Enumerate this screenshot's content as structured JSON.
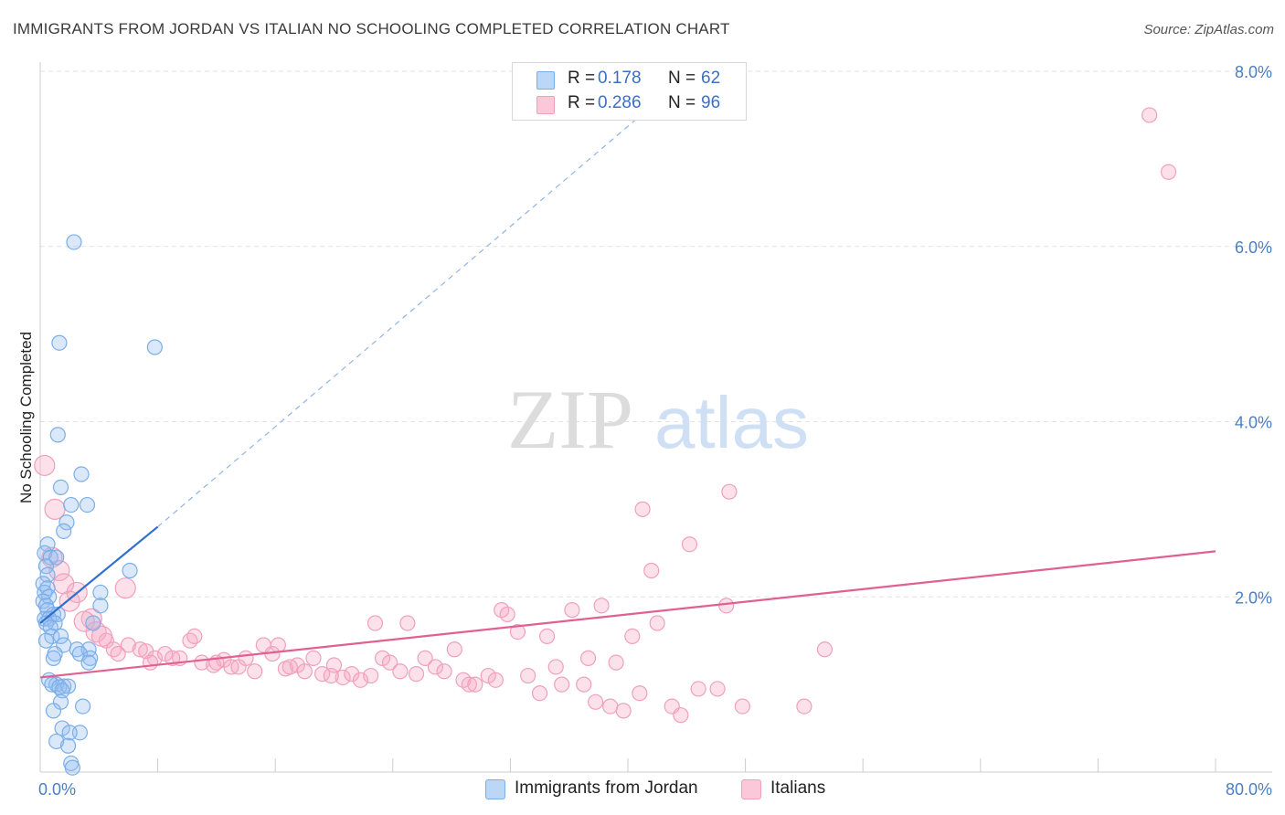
{
  "header": {
    "title": "IMMIGRANTS FROM JORDAN VS ITALIAN NO SCHOOLING COMPLETED CORRELATION CHART",
    "source": "Source: ZipAtlas.com"
  },
  "legend": {
    "r_label": "R =",
    "n_label": "N =",
    "rows": [
      {
        "r": "0.178",
        "n": "62",
        "color": "#a8c8f0"
      },
      {
        "r": "0.286",
        "n": "96",
        "color": "#f5b8cc"
      }
    ]
  },
  "bottom_legend": [
    {
      "label": "Immigrants from Jordan",
      "color": "#a8c8f0"
    },
    {
      "label": "Italians",
      "color": "#f5b8cc"
    }
  ],
  "watermark": {
    "part1": "ZIP",
    "part2": "atlas"
  },
  "chart_data": {
    "type": "scatter",
    "ylabel": "No Schooling Completed",
    "xlim": [
      0,
      80
    ],
    "ylim": [
      0,
      8.0
    ],
    "x_tick_labels": [
      "0.0%",
      "80.0%"
    ],
    "y_ticks": [
      2.0,
      4.0,
      6.0,
      8.0
    ],
    "y_tick_labels": [
      "2.0%",
      "4.0%",
      "6.0%",
      "8.0%"
    ],
    "grid": true,
    "colors": {
      "jordan": "#7aaee8",
      "jordan_line": "#2f6fd0",
      "italians": "#f0a0bb",
      "italians_line": "#e06090"
    },
    "series": [
      {
        "name": "Immigrants from Jordan",
        "trend": {
          "x": [
            0,
            8
          ],
          "y": [
            1.7,
            2.8
          ],
          "dashed_to": [
            43,
            7.8
          ]
        },
        "points": [
          [
            2.3,
            6.05
          ],
          [
            1.3,
            4.9
          ],
          [
            7.8,
            4.85
          ],
          [
            1.2,
            3.85
          ],
          [
            2.8,
            3.4
          ],
          [
            1.4,
            3.25
          ],
          [
            3.2,
            3.05
          ],
          [
            2.1,
            3.05
          ],
          [
            1.8,
            2.85
          ],
          [
            1.6,
            2.75
          ],
          [
            0.5,
            2.6
          ],
          [
            0.3,
            2.5
          ],
          [
            0.7,
            2.45
          ],
          [
            1.1,
            2.45
          ],
          [
            0.4,
            2.35
          ],
          [
            0.5,
            2.25
          ],
          [
            6.1,
            2.3
          ],
          [
            0.2,
            2.15
          ],
          [
            0.5,
            2.1
          ],
          [
            0.3,
            2.05
          ],
          [
            0.6,
            2.0
          ],
          [
            4.1,
            2.05
          ],
          [
            0.2,
            1.95
          ],
          [
            0.4,
            1.9
          ],
          [
            4.1,
            1.9
          ],
          [
            0.5,
            1.85
          ],
          [
            0.9,
            1.8
          ],
          [
            1.2,
            1.8
          ],
          [
            0.3,
            1.75
          ],
          [
            0.6,
            1.75
          ],
          [
            1.0,
            1.7
          ],
          [
            0.4,
            1.7
          ],
          [
            0.7,
            1.65
          ],
          [
            3.6,
            1.7
          ],
          [
            0.8,
            1.55
          ],
          [
            1.4,
            1.55
          ],
          [
            0.4,
            1.5
          ],
          [
            1.6,
            1.45
          ],
          [
            2.5,
            1.4
          ],
          [
            3.3,
            1.4
          ],
          [
            1.0,
            1.35
          ],
          [
            2.7,
            1.35
          ],
          [
            0.9,
            1.3
          ],
          [
            3.4,
            1.3
          ],
          [
            3.3,
            1.25
          ],
          [
            0.6,
            1.05
          ],
          [
            1.1,
            1.0
          ],
          [
            0.8,
            1.0
          ],
          [
            1.6,
            0.98
          ],
          [
            1.3,
            0.97
          ],
          [
            1.9,
            0.98
          ],
          [
            1.5,
            0.93
          ],
          [
            1.4,
            0.8
          ],
          [
            2.9,
            0.75
          ],
          [
            1.5,
            0.5
          ],
          [
            2.7,
            0.45
          ],
          [
            2.0,
            0.45
          ],
          [
            1.1,
            0.35
          ],
          [
            1.9,
            0.3
          ],
          [
            2.1,
            0.1
          ],
          [
            2.2,
            0.05
          ],
          [
            0.9,
            0.7
          ]
        ]
      },
      {
        "name": "Italians",
        "trend": {
          "x": [
            0,
            80
          ],
          "y": [
            1.08,
            2.52
          ]
        },
        "points": [
          [
            75.5,
            7.5
          ],
          [
            76.8,
            6.85
          ],
          [
            0.3,
            3.5
          ],
          [
            1.0,
            3.0
          ],
          [
            0.8,
            2.45
          ],
          [
            1.3,
            2.3
          ],
          [
            1.6,
            2.15
          ],
          [
            2.5,
            2.05
          ],
          [
            5.8,
            2.1
          ],
          [
            2.0,
            1.95
          ],
          [
            3.5,
            1.75
          ],
          [
            3.8,
            1.6
          ],
          [
            4.5,
            1.5
          ],
          [
            5.0,
            1.4
          ],
          [
            5.3,
            1.35
          ],
          [
            6.0,
            1.45
          ],
          [
            6.8,
            1.4
          ],
          [
            7.2,
            1.38
          ],
          [
            7.8,
            1.3
          ],
          [
            8.5,
            1.35
          ],
          [
            9.5,
            1.3
          ],
          [
            10.2,
            1.5
          ],
          [
            10.5,
            1.55
          ],
          [
            11.0,
            1.25
          ],
          [
            11.8,
            1.22
          ],
          [
            12.5,
            1.28
          ],
          [
            13.0,
            1.2
          ],
          [
            13.5,
            1.2
          ],
          [
            14.0,
            1.3
          ],
          [
            14.6,
            1.15
          ],
          [
            15.2,
            1.45
          ],
          [
            15.8,
            1.35
          ],
          [
            16.2,
            1.45
          ],
          [
            16.7,
            1.18
          ],
          [
            17.5,
            1.22
          ],
          [
            18.0,
            1.15
          ],
          [
            18.6,
            1.3
          ],
          [
            19.2,
            1.12
          ],
          [
            20.0,
            1.22
          ],
          [
            20.6,
            1.08
          ],
          [
            21.2,
            1.12
          ],
          [
            21.8,
            1.05
          ],
          [
            22.5,
            1.1
          ],
          [
            22.8,
            1.7
          ],
          [
            23.3,
            1.3
          ],
          [
            23.8,
            1.25
          ],
          [
            24.5,
            1.15
          ],
          [
            25.0,
            1.7
          ],
          [
            25.6,
            1.12
          ],
          [
            26.2,
            1.3
          ],
          [
            26.9,
            1.2
          ],
          [
            27.5,
            1.15
          ],
          [
            28.2,
            1.4
          ],
          [
            28.8,
            1.05
          ],
          [
            29.2,
            1.0
          ],
          [
            29.6,
            1.0
          ],
          [
            30.5,
            1.1
          ],
          [
            31.0,
            1.05
          ],
          [
            31.4,
            1.85
          ],
          [
            31.8,
            1.8
          ],
          [
            32.5,
            1.6
          ],
          [
            33.2,
            1.1
          ],
          [
            34.0,
            0.9
          ],
          [
            34.5,
            1.55
          ],
          [
            35.1,
            1.2
          ],
          [
            35.5,
            1.0
          ],
          [
            36.2,
            1.85
          ],
          [
            37.0,
            1.0
          ],
          [
            37.3,
            1.3
          ],
          [
            37.8,
            0.8
          ],
          [
            38.2,
            1.9
          ],
          [
            38.8,
            0.75
          ],
          [
            39.2,
            1.25
          ],
          [
            39.7,
            0.7
          ],
          [
            40.3,
            1.55
          ],
          [
            40.8,
            0.9
          ],
          [
            41.0,
            3.0
          ],
          [
            41.6,
            2.3
          ],
          [
            42.0,
            1.7
          ],
          [
            43.0,
            0.75
          ],
          [
            43.6,
            0.65
          ],
          [
            44.2,
            2.6
          ],
          [
            44.8,
            0.95
          ],
          [
            46.1,
            0.95
          ],
          [
            46.7,
            1.9
          ],
          [
            46.9,
            3.2
          ],
          [
            47.8,
            0.75
          ],
          [
            53.4,
            1.4
          ],
          [
            52.0,
            0.75
          ],
          [
            7.5,
            1.25
          ],
          [
            9.0,
            1.3
          ],
          [
            3.0,
            1.72
          ],
          [
            12.0,
            1.25
          ],
          [
            17.0,
            1.2
          ],
          [
            19.8,
            1.1
          ],
          [
            4.2,
            1.55
          ]
        ]
      }
    ]
  }
}
